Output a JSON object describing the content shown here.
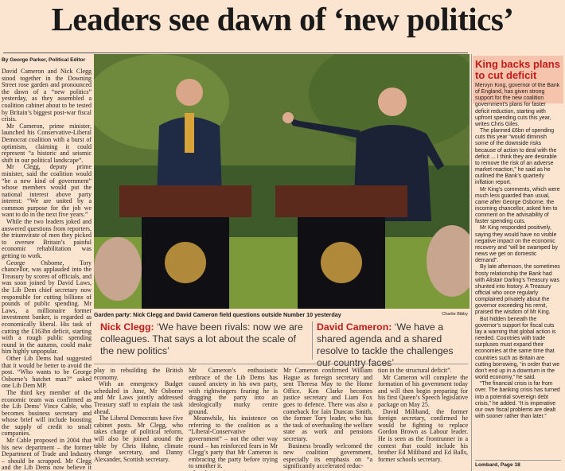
{
  "headline": "Leaders see dawn of ‘new politics’",
  "byline": "By George Parker, Political Editor",
  "lead_paragraphs": [
    "David Cameron and Nick Clegg stood together in the Downing Street rose garden and pronounced the dawn of a “new politics” yesterday, as they assembled a coalition cabinet about to be tested by Britain’s biggest post-war fiscal crisis.",
    "Mr Cameron, prime minister, launched his Conservative-Liberal Democrat coalition with a burst of optimism, claiming it could represent “a historic and seismic shift in our political landscape”.",
    "Mr Clegg, deputy prime minister, said the coalition would “be a new kind of government” whose members would put the national interest above party interest: “We are united by a common purpose for the job we want to do in the next five years.”",
    "While the two leaders joked and answered questions from reporters, the triumvirate of men they picked to oversee Britain’s painful economic rehabilitation was getting to work.",
    "George Osborne, Tory chancellor, was applauded into the Treasury by scores of officials, and was soon joined by David Laws, the Lib Dem chief secretary now responsible for cutting billions of pounds of public spending. Mr Laws, a millionaire former investment banker, is regarded as economically liberal. His task of cutting the £163bn deficit, starting with a rough public spending round in the autumn, could make him highly unpopular.",
    "Other Lib Dems had suggested that it would be better to avoid the post. “Who wants to be George Osborne’s hatchet man?” asked one Lib Dem MP.",
    "The third key member of the economic team was confirmed as the Lib Dems’ Vince Cable, who becomes business secretary and whose brief will include boosting the supply of credit to small companies.",
    "Mr Cable proposed in 2004 that his new department – the former Department of Trade and Industry – should be scrapped. Mr Clegg and the Lib Dems now believe it has a key role to"
  ],
  "photo": {
    "caption": "Garden party: Nick Clegg and David Cameron field questions outside Number 10 yesterday",
    "credit": "Charlie Bibby"
  },
  "quotes": [
    {
      "speaker": "Nick Clegg:",
      "text": "‘We have been rivals: now we are colleagues. That says a lot about the scale of the new politics’"
    },
    {
      "speaker": "David Cameron:",
      "text": "‘We have a shared agenda and a shared resolve to tackle the challenges our country faces’"
    }
  ],
  "body_columns": [
    [
      "play in rebuilding the British economy.",
      "With an emergency Budget scheduled in June, Mr Osborne and Mr Laws jointly addressed Treasury staff to explain the task ahead.",
      "The Liberal Democrats have five cabinet posts. Mr Clegg, who takes charge of political reform, will also be joined around the table by Chris Huhne, climate change secretary, and Danny Alexander, Scottish secretary."
    ],
    [
      "Mr Cameron’s enthusiastic embrace of the Lib Dems has caused anxiety in his own party, with rightwingers fearing he is dragging the party into an ideologically murky centre ground.",
      "Meanwhile, his insistence on referring to the coalition as a “Liberal-Conservative government” – not the other way round – has reinforced fears in Mr Clegg’s party that Mr Cameron is embracing the party before trying to smother it.",
      "In other senior appointments,"
    ],
    [
      "Mr Cameron confirmed William Hague as foreign secretary and sent Theresa May to the Home Office. Ken Clarke becomes justice secretary and Liam Fox goes to defence. There was also a comeback for Iain Duncan Smith, the former Tory leader, who has the task of overhauling the welfare state as work and pensions secretary.",
      "Business broadly welcomed the new coalition government, especially its emphasis on “a significantly accelerated reduc-"
    ],
    [
      "tion in the structural deficit”.",
      "Mr Cameron will complete the formation of his government today and will then begin preparing for his first Queen’s Speech legislative package on May 25.",
      "David Miliband, the former foreign secretary, confirmed he would be fighting to replace Gordon Brown as Labour leader. He is seen as the frontrunner in a contest that could include his brother Ed Miliband and Ed Balls, former schools secretary."
    ]
  ],
  "sidebar": {
    "title": "King backs plans to cut deficit",
    "paragraphs": [
      "Mervyn King, governor of the Bank of England, has given strong support for the new coalition government’s plans for faster deficit reduction, starting with upfront spending cuts this year, writes Chris Giles.",
      "The planned £6bn of spending cuts this year “would diminish some of the downside risks because of action to deal with the deficit ... I think they are desirable to remove the risk of an adverse market reaction,” he said as he outlined the Bank’s quarterly inflation report.",
      "Mr King’s comments, which were much less guarded than usual, came after George Osborne, the incoming chancellor, asked him to comment on the advisability of faster spending cuts.",
      "Mr King responded positively, saying they would have no visible negative impact on the economic recovery and “will be swamped by news we get on domestic demand”.",
      "By late afternoon, the sometimes frosty relationship the Bank had with Alistair Darling’s Treasury was shunted into history. A Treasury official who once regularly complained privately about the governor exceeding his remit, praised the wisdom of Mr King.",
      "But hidden beneath the governor’s support for fiscal cuts lay a warning that global action is needed. Countries with trade surpluses must expand their economies at the same time that countries such as Britain are cutting borrowing, “in order that we don’t end up in a downturn in the world economy,” he said.",
      "“The financial crisis is far from over. The banking crisis has turned into a potential sovereign debt crisis,” he added. “It is imperative our own fiscal problems are dealt with sooner rather than later.”"
    ],
    "footer": "Lombard, Page 18"
  }
}
